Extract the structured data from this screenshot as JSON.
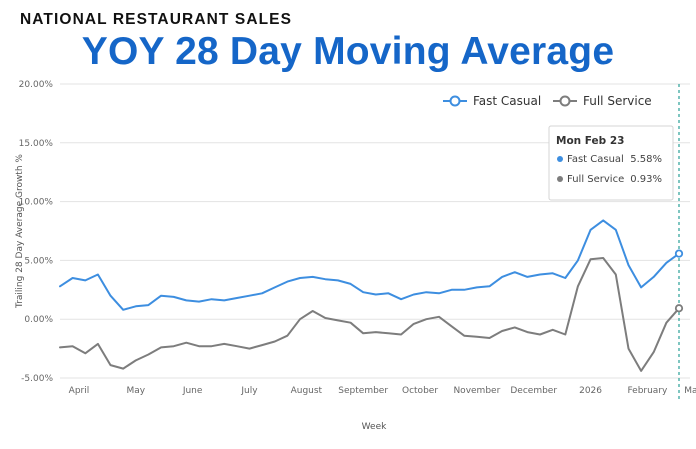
{
  "header": {
    "kicker": "NATIONAL RESTAURANT SALES",
    "title": "YOY 28 Day Moving Average"
  },
  "colors": {
    "title": "#1566c8",
    "fast_casual": "#3d8ee0",
    "full_service": "#7d7d7d",
    "grid": "#e3e3e3",
    "crosshair": "#2aa198"
  },
  "chart_data": {
    "type": "line",
    "ylabel": "Trailing 28 Day Average Growth %",
    "xlabel": "Week",
    "ylim": [
      -5,
      20
    ],
    "y_ticks": [
      {
        "value": 20,
        "label": "20.00%"
      },
      {
        "value": 15,
        "label": "15.00%"
      },
      {
        "value": 10,
        "label": "10.00%"
      },
      {
        "value": 5,
        "label": "5.00%"
      },
      {
        "value": 0,
        "label": "0.00%"
      },
      {
        "value": -5,
        "label": "-5.00%"
      }
    ],
    "x_ticks": [
      {
        "label": "April",
        "week": 2.5
      },
      {
        "label": "May",
        "week": 7
      },
      {
        "label": "June",
        "week": 11.5
      },
      {
        "label": "July",
        "week": 16
      },
      {
        "label": "August",
        "week": 20.5
      },
      {
        "label": "September",
        "week": 25
      },
      {
        "label": "October",
        "week": 29.5
      },
      {
        "label": "November",
        "week": 34
      },
      {
        "label": "December",
        "week": 38.5
      },
      {
        "label": "2026",
        "week": 43
      },
      {
        "label": "February",
        "week": 47.5
      },
      {
        "label": "March",
        "week": 51.5
      }
    ],
    "series": [
      {
        "name": "Fast Casual",
        "values": [
          2.8,
          3.5,
          3.3,
          3.8,
          2.0,
          0.8,
          1.1,
          1.2,
          2.0,
          1.9,
          1.6,
          1.5,
          1.7,
          1.6,
          1.8,
          2.0,
          2.2,
          2.7,
          3.2,
          3.5,
          3.6,
          3.4,
          3.3,
          3.0,
          2.3,
          2.1,
          2.2,
          1.7,
          2.1,
          2.3,
          2.2,
          2.5,
          2.5,
          2.7,
          2.8,
          3.6,
          4.0,
          3.6,
          3.8,
          3.9,
          3.5,
          5.0,
          7.6,
          8.4,
          7.6,
          4.6,
          2.7,
          3.6,
          4.8,
          5.58
        ]
      },
      {
        "name": "Full Service",
        "values": [
          -2.4,
          -2.3,
          -2.9,
          -2.1,
          -3.9,
          -4.2,
          -3.5,
          -3.0,
          -2.4,
          -2.3,
          -2.0,
          -2.3,
          -2.3,
          -2.1,
          -2.3,
          -2.5,
          -2.2,
          -1.9,
          -1.4,
          0.0,
          0.7,
          0.1,
          -0.1,
          -0.3,
          -1.2,
          -1.1,
          -1.2,
          -1.3,
          -0.4,
          0.0,
          0.2,
          -0.6,
          -1.4,
          -1.5,
          -1.6,
          -1.0,
          -0.7,
          -1.1,
          -1.3,
          -0.9,
          -1.3,
          2.8,
          5.1,
          5.2,
          3.8,
          -2.5,
          -4.4,
          -2.8,
          -0.3,
          0.93
        ]
      }
    ],
    "tooltip": {
      "title": "Mon Feb 23",
      "rows": [
        {
          "name": "Fast Casual",
          "value": "5.58%"
        },
        {
          "name": "Full Service",
          "value": "0.93%"
        }
      ]
    }
  }
}
